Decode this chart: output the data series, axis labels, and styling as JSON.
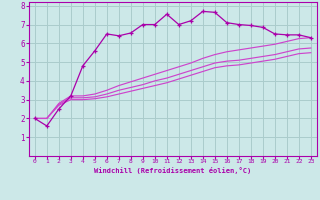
{
  "bg_color": "#cce8e8",
  "grid_color": "#aacccc",
  "line_color": "#aa00aa",
  "line_color2": "#cc44cc",
  "xlabel": "Windchill (Refroidissement éolien,°C)",
  "xlim": [
    -0.5,
    23.5
  ],
  "ylim": [
    0,
    8.2
  ],
  "xticks": [
    0,
    1,
    2,
    3,
    4,
    5,
    6,
    7,
    8,
    9,
    10,
    11,
    12,
    13,
    14,
    15,
    16,
    17,
    18,
    19,
    20,
    21,
    22,
    23
  ],
  "yticks": [
    1,
    2,
    3,
    4,
    5,
    6,
    7,
    8
  ],
  "series1_x": [
    0,
    1,
    2,
    3,
    4,
    5,
    6,
    7,
    8,
    9,
    10,
    11,
    12,
    13,
    14,
    15,
    16,
    17,
    18,
    19,
    20,
    21,
    22,
    23
  ],
  "series1_y": [
    2.0,
    1.6,
    2.5,
    3.2,
    4.8,
    5.6,
    6.5,
    6.4,
    6.55,
    7.0,
    7.0,
    7.55,
    7.0,
    7.2,
    7.7,
    7.65,
    7.1,
    7.0,
    6.95,
    6.85,
    6.5,
    6.45,
    6.45,
    6.3
  ],
  "series2_x": [
    0,
    1,
    2,
    3,
    4,
    5,
    6,
    7,
    8,
    9,
    10,
    11,
    12,
    13,
    14,
    15,
    16,
    17,
    18,
    19,
    20,
    21,
    22,
    23
  ],
  "series2_y": [
    2.0,
    2.0,
    2.8,
    3.2,
    3.2,
    3.3,
    3.5,
    3.75,
    3.95,
    4.15,
    4.35,
    4.55,
    4.75,
    4.95,
    5.2,
    5.4,
    5.55,
    5.65,
    5.75,
    5.85,
    5.95,
    6.1,
    6.25,
    6.3
  ],
  "series3_x": [
    0,
    1,
    2,
    3,
    4,
    5,
    6,
    7,
    8,
    9,
    10,
    11,
    12,
    13,
    14,
    15,
    16,
    17,
    18,
    19,
    20,
    21,
    22,
    23
  ],
  "series3_y": [
    2.0,
    2.0,
    2.75,
    3.1,
    3.1,
    3.15,
    3.3,
    3.5,
    3.65,
    3.8,
    4.0,
    4.15,
    4.35,
    4.55,
    4.75,
    4.95,
    5.05,
    5.1,
    5.2,
    5.3,
    5.4,
    5.55,
    5.7,
    5.75
  ],
  "series4_x": [
    0,
    1,
    2,
    3,
    4,
    5,
    6,
    7,
    8,
    9,
    10,
    11,
    12,
    13,
    14,
    15,
    16,
    17,
    18,
    19,
    20,
    21,
    22,
    23
  ],
  "series4_y": [
    2.0,
    2.0,
    2.7,
    3.0,
    3.0,
    3.05,
    3.15,
    3.3,
    3.45,
    3.6,
    3.75,
    3.9,
    4.1,
    4.3,
    4.5,
    4.7,
    4.8,
    4.85,
    4.95,
    5.05,
    5.15,
    5.3,
    5.45,
    5.5
  ]
}
